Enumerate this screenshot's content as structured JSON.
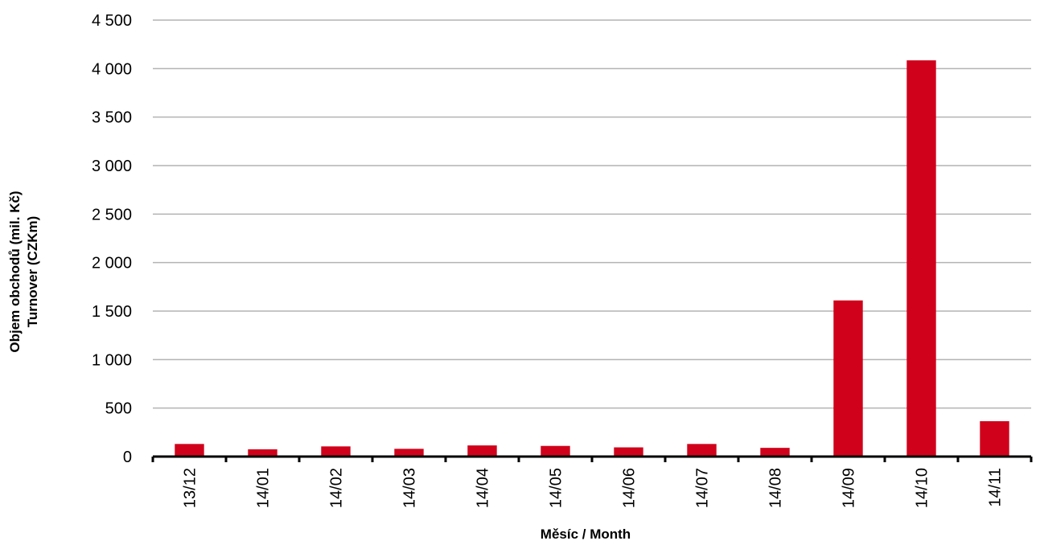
{
  "chart_data": {
    "type": "bar",
    "categories": [
      "13/12",
      "14/01",
      "14/02",
      "14/03",
      "14/04",
      "14/05",
      "14/06",
      "14/07",
      "14/08",
      "14/09",
      "14/10",
      "14/11"
    ],
    "values": [
      130,
      75,
      105,
      80,
      115,
      110,
      95,
      130,
      90,
      1610,
      4085,
      365
    ],
    "xlabel": "Měsíc / Month",
    "ylabel": [
      "Objem obchodů (mil. Kč)",
      "Turnover (CZKm)"
    ],
    "ylim": [
      0,
      4500
    ],
    "yticks": [
      0,
      500,
      1000,
      1500,
      2000,
      2500,
      3000,
      3500,
      4000,
      4500
    ],
    "ytick_labels": [
      "0",
      "500",
      "1 000",
      "1 500",
      "2 000",
      "2 500",
      "3 000",
      "3 500",
      "4 000",
      "4 500"
    ],
    "grid": true,
    "legend": "none",
    "colors": {
      "bar": "#d0021b",
      "grid": "#b3b3b3",
      "axis": "#000000"
    }
  }
}
